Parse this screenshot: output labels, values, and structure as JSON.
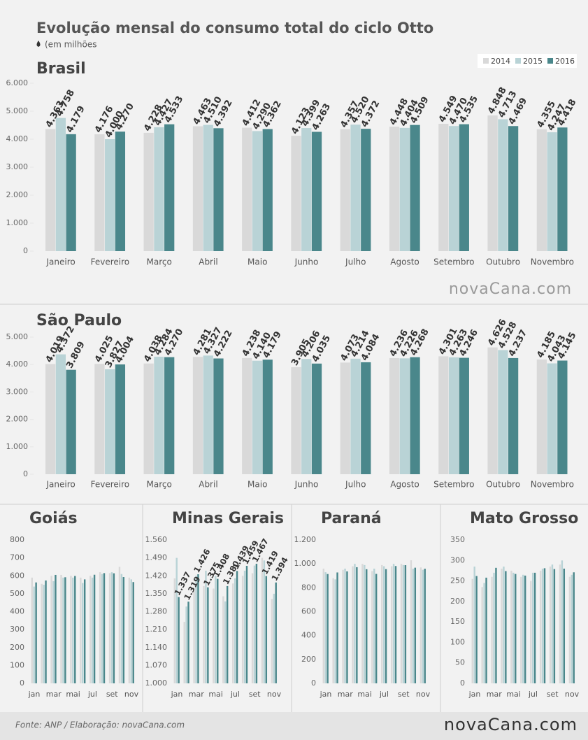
{
  "title": "Evolução mensal do consumo total do ciclo Otto",
  "subtitle": "(em milhões",
  "watermark": "novaCana.com",
  "footer": "Fonte: ANP / Elaboração: novaCana.com",
  "logo": "novaCana.com",
  "chart_data": [
    {
      "type": "bar",
      "title": "Brasil",
      "legend": "upper right",
      "grid": false,
      "categories": [
        "Janeiro",
        "Fevereiro",
        "Março",
        "Abril",
        "Maio",
        "Junho",
        "Julho",
        "Agosto",
        "Setembro",
        "Outubro",
        "Novembro"
      ],
      "series": [
        {
          "name": "2014",
          "color": "#d9d9d9",
          "values": [
            4363,
            4176,
            4228,
            4463,
            4412,
            4123,
            4357,
            4448,
            4549,
            4848,
            4355
          ],
          "value_labels": [
            "4.363",
            "4.176",
            "4.228",
            "4.463",
            "4.412",
            "4.123",
            "4.357",
            "4.448",
            "4.549",
            "4.848",
            "4.355"
          ]
        },
        {
          "name": "2015",
          "color": "#b9d3d6",
          "values": [
            4758,
            4000,
            4427,
            4510,
            4290,
            4399,
            4520,
            4404,
            4470,
            4713,
            4247
          ],
          "value_labels": [
            "4.758",
            "4.000",
            "4.427",
            "4.510",
            "4.290",
            "4.399",
            "4.520",
            "4.404",
            "4.470",
            "4.713",
            "4.247"
          ]
        },
        {
          "name": "2016",
          "color": "#4a878b",
          "values": [
            4179,
            4270,
            4533,
            4392,
            4362,
            4263,
            4372,
            4509,
            4535,
            4469,
            4418
          ],
          "value_labels": [
            "4.179",
            "4.270",
            "4.533",
            "4.392",
            "4.362",
            "4.263",
            "4.372",
            "4.509",
            "4.535",
            "4.469",
            "4.418"
          ]
        }
      ],
      "ylim": [
        0,
        6000
      ],
      "yticks": [
        0,
        {
          "value": 1000,
          "label": "1.000"
        },
        {
          "value": 2000,
          "label": "2.000"
        },
        {
          "value": 3000,
          "label": "3.000"
        },
        {
          "value": 4000,
          "label": "4.000"
        },
        {
          "value": 5000,
          "label": "5.000"
        },
        {
          "value": 6000,
          "label": "6.000"
        }
      ]
    },
    {
      "type": "bar",
      "title": "São Paulo",
      "grid": false,
      "categories": [
        "Janeiro",
        "Fevereiro",
        "Março",
        "Abril",
        "Maio",
        "Junho",
        "Julho",
        "Agosto",
        "Setembro",
        "Outubro",
        "Novembro"
      ],
      "series": [
        {
          "name": "2014",
          "color": "#d9d9d9",
          "values": [
            4019,
            4025,
            4038,
            4281,
            4238,
            3905,
            4073,
            4236,
            4301,
            4626,
            4185
          ],
          "value_labels": [
            "4.019",
            "4.025",
            "4.038",
            "4.281",
            "4.238",
            "3.905",
            "4.073",
            "4.236",
            "4.301",
            "4.626",
            "4.185"
          ]
        },
        {
          "name": "2015",
          "color": "#b9d3d6",
          "values": [
            4372,
            3827,
            4284,
            4327,
            4140,
            4206,
            4214,
            4226,
            4263,
            4528,
            4043
          ],
          "value_labels": [
            "4.372",
            "3.827",
            "4.284",
            "4.327",
            "4.140",
            "4.206",
            "4.214",
            "4.226",
            "4.263",
            "4.528",
            "4.043"
          ]
        },
        {
          "name": "2016",
          "color": "#4a878b",
          "values": [
            3809,
            4004,
            4270,
            4222,
            4179,
            4035,
            4084,
            4268,
            4246,
            4237,
            4145
          ],
          "value_labels": [
            "3.809",
            "4.004",
            "4.270",
            "4.222",
            "4.179",
            "4.035",
            "4.084",
            "4.268",
            "4.246",
            "4.237",
            "4.145"
          ]
        }
      ],
      "ylim": [
        0,
        5000
      ],
      "yticks": [
        0,
        {
          "value": 1000,
          "label": "1.000"
        },
        {
          "value": 2000,
          "label": "2.000"
        },
        {
          "value": 3000,
          "label": "3.000"
        },
        {
          "value": 4000,
          "label": "4.000"
        },
        {
          "value": 5000,
          "label": "5.000"
        }
      ]
    },
    {
      "type": "bar",
      "title": "Goiás",
      "grid": false,
      "categories": [
        "jan",
        null,
        "mar",
        null,
        "mai",
        null,
        "jul",
        null,
        "set",
        null,
        "nov"
      ],
      "series": [
        {
          "name": "2014",
          "color": "#d9d9d9",
          "values": [
            590,
            555,
            600,
            605,
            600,
            590,
            600,
            620,
            615,
            650,
            590
          ]
        },
        {
          "name": "2015",
          "color": "#b9d3d6",
          "values": [
            540,
            550,
            570,
            590,
            590,
            560,
            590,
            610,
            620,
            610,
            580
          ]
        },
        {
          "name": "2016",
          "color": "#4a878b",
          "values": [
            563,
            574,
            605,
            592,
            599,
            580,
            606,
            615,
            614,
            593,
            565
          ]
        }
      ],
      "ylim": [
        0,
        800
      ],
      "yticks": [
        0,
        100,
        200,
        300,
        400,
        500,
        600,
        700,
        800
      ]
    },
    {
      "type": "bar",
      "title": "Minas Gerais",
      "grid": false,
      "categories": [
        "jan",
        null,
        "mar",
        null,
        "mai",
        null,
        "jul",
        null,
        "set",
        null,
        "nov"
      ],
      "series": [
        {
          "name": "2014",
          "color": "#d9d9d9",
          "values": [
            1410,
            1240,
            1360,
            1380,
            1370,
            1340,
            1390,
            1420,
            1430,
            1490,
            1330
          ]
        },
        {
          "name": "2015",
          "color": "#b9d3d6",
          "values": [
            1490,
            1300,
            1420,
            1440,
            1420,
            1320,
            1410,
            1440,
            1460,
            1480,
            1350
          ]
        },
        {
          "name": "2016",
          "color": "#4a878b",
          "values": [
            1337,
            1319,
            1426,
            1375,
            1408,
            1380,
            1439,
            1459,
            1467,
            1419,
            1394
          ],
          "value_labels": [
            "1.337",
            "1.319",
            "1.426",
            "1.375",
            "1.408",
            "1.380",
            "1.439",
            "1.459",
            "1.467",
            "1.419",
            "1.394"
          ]
        }
      ],
      "ylim": [
        1000,
        1560
      ],
      "yticks": [
        {
          "value": 1000,
          "label": "1.000"
        },
        {
          "value": 1070,
          "label": "1.070"
        },
        {
          "value": 1140,
          "label": "1.140"
        },
        {
          "value": 1210,
          "label": "1.210"
        },
        {
          "value": 1280,
          "label": "1.280"
        },
        {
          "value": 1350,
          "label": "1.350"
        },
        {
          "value": 1420,
          "label": "1.420"
        },
        {
          "value": 1490,
          "label": "1.490"
        },
        {
          "value": 1560,
          "label": "1.560"
        }
      ]
    },
    {
      "type": "bar",
      "title": "Paraná",
      "grid": false,
      "categories": [
        "jan",
        null,
        "mar",
        null,
        "mai",
        null,
        "jul",
        null,
        "set",
        null,
        "nov"
      ],
      "series": [
        {
          "name": "2014",
          "color": "#d9d9d9",
          "values": [
            960,
            880,
            950,
            980,
            1000,
            940,
            990,
            980,
            1000,
            1030,
            970
          ]
        },
        {
          "name": "2015",
          "color": "#b9d3d6",
          "values": [
            930,
            870,
            960,
            1000,
            990,
            960,
            980,
            1000,
            990,
            960,
            950
          ]
        },
        {
          "name": "2016",
          "color": "#4a878b",
          "values": [
            915,
            928,
            937,
            972,
            955,
            916,
            956,
            982,
            989,
            968,
            959
          ]
        }
      ],
      "ylim": [
        0,
        1200
      ],
      "yticks": [
        0,
        200,
        400,
        600,
        800,
        {
          "value": 1000,
          "label": "1.000"
        },
        {
          "value": 1200,
          "label": "1.200"
        }
      ]
    },
    {
      "type": "bar",
      "title": "Mato Grosso",
      "grid": false,
      "categories": [
        "jan",
        null,
        "mar",
        null,
        "mai",
        null,
        "jul",
        null,
        "set",
        null,
        "nov"
      ],
      "series": [
        {
          "name": "2014",
          "color": "#d9d9d9",
          "values": [
            255,
            235,
            260,
            280,
            275,
            260,
            250,
            275,
            285,
            290,
            260
          ]
        },
        {
          "name": "2015",
          "color": "#b9d3d6",
          "values": [
            285,
            245,
            270,
            285,
            270,
            265,
            270,
            280,
            290,
            300,
            265
          ]
        },
        {
          "name": "2016",
          "color": "#4a878b",
          "values": [
            262,
            258,
            282,
            274,
            267,
            263,
            270,
            281,
            279,
            280,
            271
          ]
        }
      ],
      "ylim": [
        0,
        350
      ],
      "yticks": [
        0,
        50,
        100,
        150,
        200,
        250,
        300,
        350
      ]
    }
  ]
}
